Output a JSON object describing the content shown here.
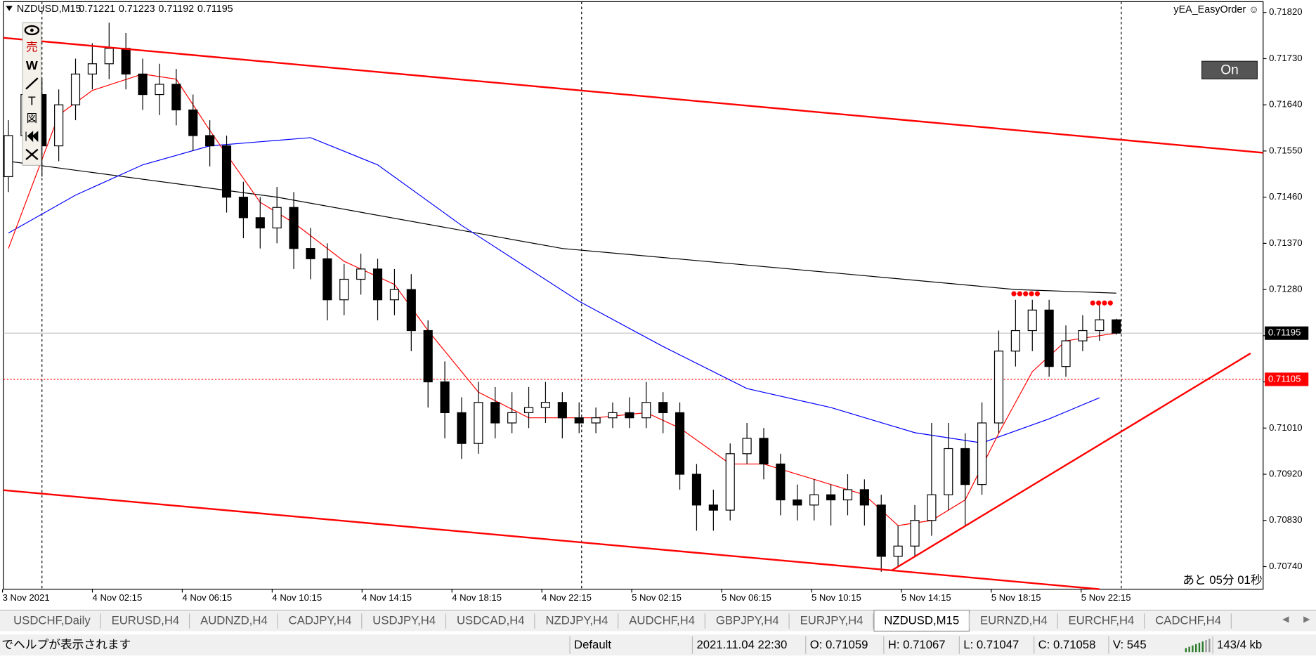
{
  "chart_data": {
    "type": "candlestick",
    "symbol": "NZDUSD,M15",
    "header_prices": [
      "0.71221",
      "0.71223",
      "0.71192",
      "0.71195"
    ],
    "ea_name": "yEA_EasyOrder ☺",
    "button": "On",
    "countdown": "あと 05分 01秒",
    "toolbar": [
      "売",
      "W",
      "T",
      "図"
    ],
    "ylim": [
      0.70696,
      0.71841
    ],
    "yticks": [
      {
        "value": 0.7182,
        "label": "0.71820"
      },
      {
        "value": 0.7173,
        "label": "0.71730"
      },
      {
        "value": 0.7164,
        "label": "0.71640"
      },
      {
        "value": 0.7155,
        "label": "0.71550"
      },
      {
        "value": 0.7146,
        "label": "0.71460"
      },
      {
        "value": 0.7137,
        "label": "0.71370"
      },
      {
        "value": 0.7128,
        "label": "0.71280"
      },
      {
        "value": 0.7119,
        "label": "0.71190"
      },
      {
        "value": 0.711,
        "label": "0.71100"
      },
      {
        "value": 0.7101,
        "label": "0.71010"
      },
      {
        "value": 0.7092,
        "label": "0.70920"
      },
      {
        "value": 0.7083,
        "label": "0.70830"
      },
      {
        "value": 0.7074,
        "label": "0.70740"
      }
    ],
    "price_line": {
      "value": 0.71195,
      "label": "0.71195"
    },
    "alert_line": {
      "value": 0.71105,
      "label": "0.71105"
    },
    "xlabels": [
      "3 Nov 2021",
      "4 Nov 02:15",
      "4 Nov 06:15",
      "4 Nov 10:15",
      "4 Nov 14:15",
      "4 Nov 18:15",
      "4 Nov 22:15",
      "5 Nov 02:15",
      "5 Nov 06:15",
      "5 Nov 10:15",
      "5 Nov 14:15",
      "5 Nov 18:15",
      "5 Nov 22:15"
    ],
    "open": [
      0.715,
      0.7158,
      0.7166,
      0.7156,
      0.7164,
      0.717,
      0.7172,
      0.7175,
      0.717,
      0.7166,
      0.7168,
      0.7163,
      0.7158,
      0.7156,
      0.7146,
      0.7142,
      0.714,
      0.7144,
      0.7136,
      0.7134,
      0.7126,
      0.713,
      0.7132,
      0.7126,
      0.7128,
      0.712,
      0.711,
      0.7104,
      0.7098,
      0.7106,
      0.7102,
      0.7104,
      0.7105,
      0.7106,
      0.7103,
      0.7102,
      0.7103,
      0.7104,
      0.7103,
      0.7106,
      0.7104,
      0.7092,
      0.7086,
      0.7085,
      0.7096,
      0.7099,
      0.7094,
      0.7087,
      0.7086,
      0.7088,
      0.7087,
      0.7089,
      0.7086,
      0.7076,
      0.7078,
      0.7083,
      0.7088,
      0.7097,
      0.709,
      0.7102,
      0.7116,
      0.712,
      0.7124,
      0.7113,
      0.7118,
      0.712,
      0.71221
    ],
    "high": [
      0.7161,
      0.7169,
      0.7169,
      0.7167,
      0.7173,
      0.7176,
      0.718,
      0.7178,
      0.7173,
      0.7172,
      0.7171,
      0.7166,
      0.7161,
      0.7158,
      0.7149,
      0.7146,
      0.7148,
      0.7147,
      0.714,
      0.7137,
      0.7133,
      0.7135,
      0.7134,
      0.7132,
      0.7131,
      0.7122,
      0.7114,
      0.7107,
      0.711,
      0.7109,
      0.7108,
      0.7109,
      0.711,
      0.7108,
      0.7106,
      0.7105,
      0.7106,
      0.7107,
      0.711,
      0.7108,
      0.7106,
      0.7094,
      0.7089,
      0.7098,
      0.7102,
      0.7101,
      0.7096,
      0.709,
      0.7091,
      0.709,
      0.7092,
      0.7091,
      0.7088,
      0.7082,
      0.7086,
      0.7102,
      0.7102,
      0.71,
      0.7106,
      0.712,
      0.7126,
      0.7126,
      0.7126,
      0.7121,
      0.7123,
      0.7125,
      0.71223
    ],
    "low": [
      0.7147,
      0.7155,
      0.715,
      0.7153,
      0.7161,
      0.7167,
      0.7169,
      0.7167,
      0.7163,
      0.7162,
      0.716,
      0.7155,
      0.7152,
      0.7143,
      0.7138,
      0.7136,
      0.7137,
      0.7132,
      0.713,
      0.7122,
      0.7123,
      0.7127,
      0.7122,
      0.7123,
      0.7116,
      0.7105,
      0.7099,
      0.7095,
      0.7096,
      0.7099,
      0.71,
      0.7101,
      0.7102,
      0.7099,
      0.71,
      0.71,
      0.7101,
      0.7101,
      0.7101,
      0.71,
      0.7089,
      0.7081,
      0.7081,
      0.7083,
      0.7094,
      0.7091,
      0.7084,
      0.7083,
      0.7083,
      0.7082,
      0.7084,
      0.7082,
      0.7073,
      0.7074,
      0.7076,
      0.708,
      0.7085,
      0.7082,
      0.7088,
      0.71,
      0.7113,
      0.7116,
      0.7111,
      0.7111,
      0.7116,
      0.7118,
      0.71192
    ],
    "close": [
      0.7158,
      0.7166,
      0.7156,
      0.7164,
      0.717,
      0.7172,
      0.7175,
      0.717,
      0.7166,
      0.7168,
      0.7163,
      0.7158,
      0.7156,
      0.7146,
      0.7142,
      0.714,
      0.7144,
      0.7136,
      0.7134,
      0.7126,
      0.713,
      0.7132,
      0.7126,
      0.7128,
      0.712,
      0.711,
      0.7104,
      0.7098,
      0.7106,
      0.7102,
      0.7104,
      0.7105,
      0.7106,
      0.7103,
      0.7102,
      0.7103,
      0.7104,
      0.7103,
      0.7106,
      0.7104,
      0.7092,
      0.7086,
      0.7085,
      0.7096,
      0.7099,
      0.7094,
      0.7087,
      0.7086,
      0.7088,
      0.7087,
      0.7089,
      0.7086,
      0.7076,
      0.7078,
      0.7083,
      0.7088,
      0.7097,
      0.709,
      0.7102,
      0.7116,
      0.712,
      0.7124,
      0.7113,
      0.7118,
      0.712,
      0.71221,
      0.71195
    ],
    "ma": [
      {
        "color": "#000000",
        "x": [
          0,
          16,
          33,
          50,
          60,
          66
        ],
        "values": [
          0.7153,
          0.7146,
          0.7136,
          0.7131,
          0.7128,
          0.71273
        ]
      },
      {
        "color": "#0000ff",
        "x": [
          0,
          4,
          8,
          12,
          18,
          22,
          27,
          34,
          39,
          44,
          49,
          54,
          58,
          62,
          65
        ],
        "values": [
          0.7139,
          0.71464,
          0.71523,
          0.7156,
          0.71576,
          0.71523,
          0.71405,
          0.71257,
          0.71169,
          0.71087,
          0.7105,
          0.71001,
          0.70981,
          0.71028,
          0.71069
        ]
      },
      {
        "color": "#ff0000",
        "x": [
          0,
          3,
          5,
          8,
          10,
          12,
          15,
          17,
          20,
          23,
          25,
          26,
          28,
          31,
          35,
          38,
          40,
          43,
          45,
          48,
          51,
          53,
          55,
          57,
          59,
          61,
          63,
          66
        ],
        "values": [
          0.7136,
          0.7162,
          0.71668,
          0.717,
          0.7169,
          0.7159,
          0.7145,
          0.7141,
          0.71335,
          0.7129,
          0.712,
          0.7116,
          0.7108,
          0.7103,
          0.7103,
          0.7104,
          0.7101,
          0.7094,
          0.7094,
          0.7091,
          0.7088,
          0.7082,
          0.7083,
          0.7087,
          0.71,
          0.7112,
          0.7118,
          0.71195
        ]
      }
    ],
    "tabs": [
      "USDCHF,Daily",
      "EURUSD,H4",
      "AUDNZD,H4",
      "CADJPY,H4",
      "USDJPY,H4",
      "USDCAD,H4",
      "NZDJPY,H4",
      "AUDCHF,H4",
      "GBPJPY,H4",
      "EURJPY,H4",
      "NZDUSD,M15",
      "EURNZD,H4",
      "EURCHF,H4",
      "CADCHF,H4"
    ],
    "active_tab": 10,
    "status": [
      "でヘルプが表示されます",
      "Default",
      "2021.11.04 22:30",
      "O: 0.71059",
      "H: 0.71067",
      "L: 0.71047",
      "C: 0.71058",
      "V: 545",
      "143/4 kb"
    ]
  }
}
